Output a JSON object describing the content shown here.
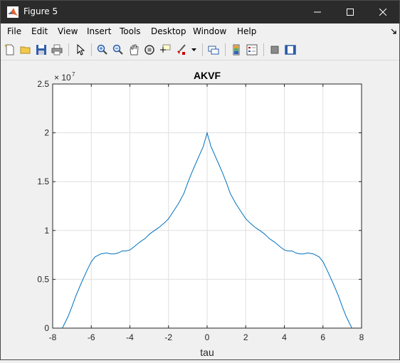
{
  "window": {
    "title": "Figure 5"
  },
  "menu": {
    "file": "File",
    "edit": "Edit",
    "view": "View",
    "insert": "Insert",
    "tools": "Tools",
    "desktop": "Desktop",
    "window": "Window",
    "help": "Help"
  },
  "chart_data": {
    "type": "line",
    "title": "AKVF",
    "xlabel": "tau",
    "ylabel": "",
    "xlim": [
      -8,
      8
    ],
    "ylim": [
      0,
      2.5
    ],
    "y_exponent_label": "× 10",
    "y_exponent_power": "7",
    "xticks": [
      "-8",
      "-6",
      "-4",
      "-2",
      "0",
      "2",
      "4",
      "6",
      "8"
    ],
    "yticks": [
      "0",
      "0.5",
      "1",
      "1.5",
      "2",
      "2.5"
    ],
    "grid": true,
    "color": "#0072bd",
    "series": [
      {
        "x": [
          -7.5,
          -7.2,
          -7.0,
          -6.8,
          -6.5,
          -6.2,
          -6.0,
          -5.8,
          -5.5,
          -5.2,
          -5.0,
          -4.8,
          -4.6,
          -4.4,
          -4.2,
          -4.0,
          -3.8,
          -3.5,
          -3.2,
          -3.0,
          -2.8,
          -2.5,
          -2.2,
          -2.0,
          -1.8,
          -1.5,
          -1.2,
          -1.0,
          -0.8,
          -0.6,
          -0.4,
          -0.2,
          0.0,
          0.2,
          0.4,
          0.6,
          0.8,
          1.0,
          1.2,
          1.5,
          1.8,
          2.0,
          2.2,
          2.5,
          2.8,
          3.0,
          3.2,
          3.5,
          3.8,
          4.0,
          4.2,
          4.4,
          4.6,
          4.8,
          5.0,
          5.2,
          5.5,
          5.8,
          6.0,
          6.2,
          6.5,
          6.8,
          7.0,
          7.2,
          7.5
        ],
        "y": [
          0.0,
          0.12,
          0.22,
          0.33,
          0.47,
          0.6,
          0.68,
          0.73,
          0.76,
          0.77,
          0.76,
          0.76,
          0.77,
          0.79,
          0.79,
          0.8,
          0.83,
          0.88,
          0.92,
          0.96,
          0.99,
          1.03,
          1.08,
          1.12,
          1.18,
          1.27,
          1.38,
          1.49,
          1.59,
          1.68,
          1.77,
          1.86,
          2.0,
          1.86,
          1.77,
          1.68,
          1.59,
          1.49,
          1.38,
          1.27,
          1.18,
          1.12,
          1.08,
          1.03,
          0.99,
          0.96,
          0.92,
          0.88,
          0.83,
          0.8,
          0.79,
          0.79,
          0.77,
          0.76,
          0.76,
          0.77,
          0.76,
          0.73,
          0.68,
          0.6,
          0.47,
          0.33,
          0.22,
          0.12,
          0.0
        ]
      }
    ]
  }
}
